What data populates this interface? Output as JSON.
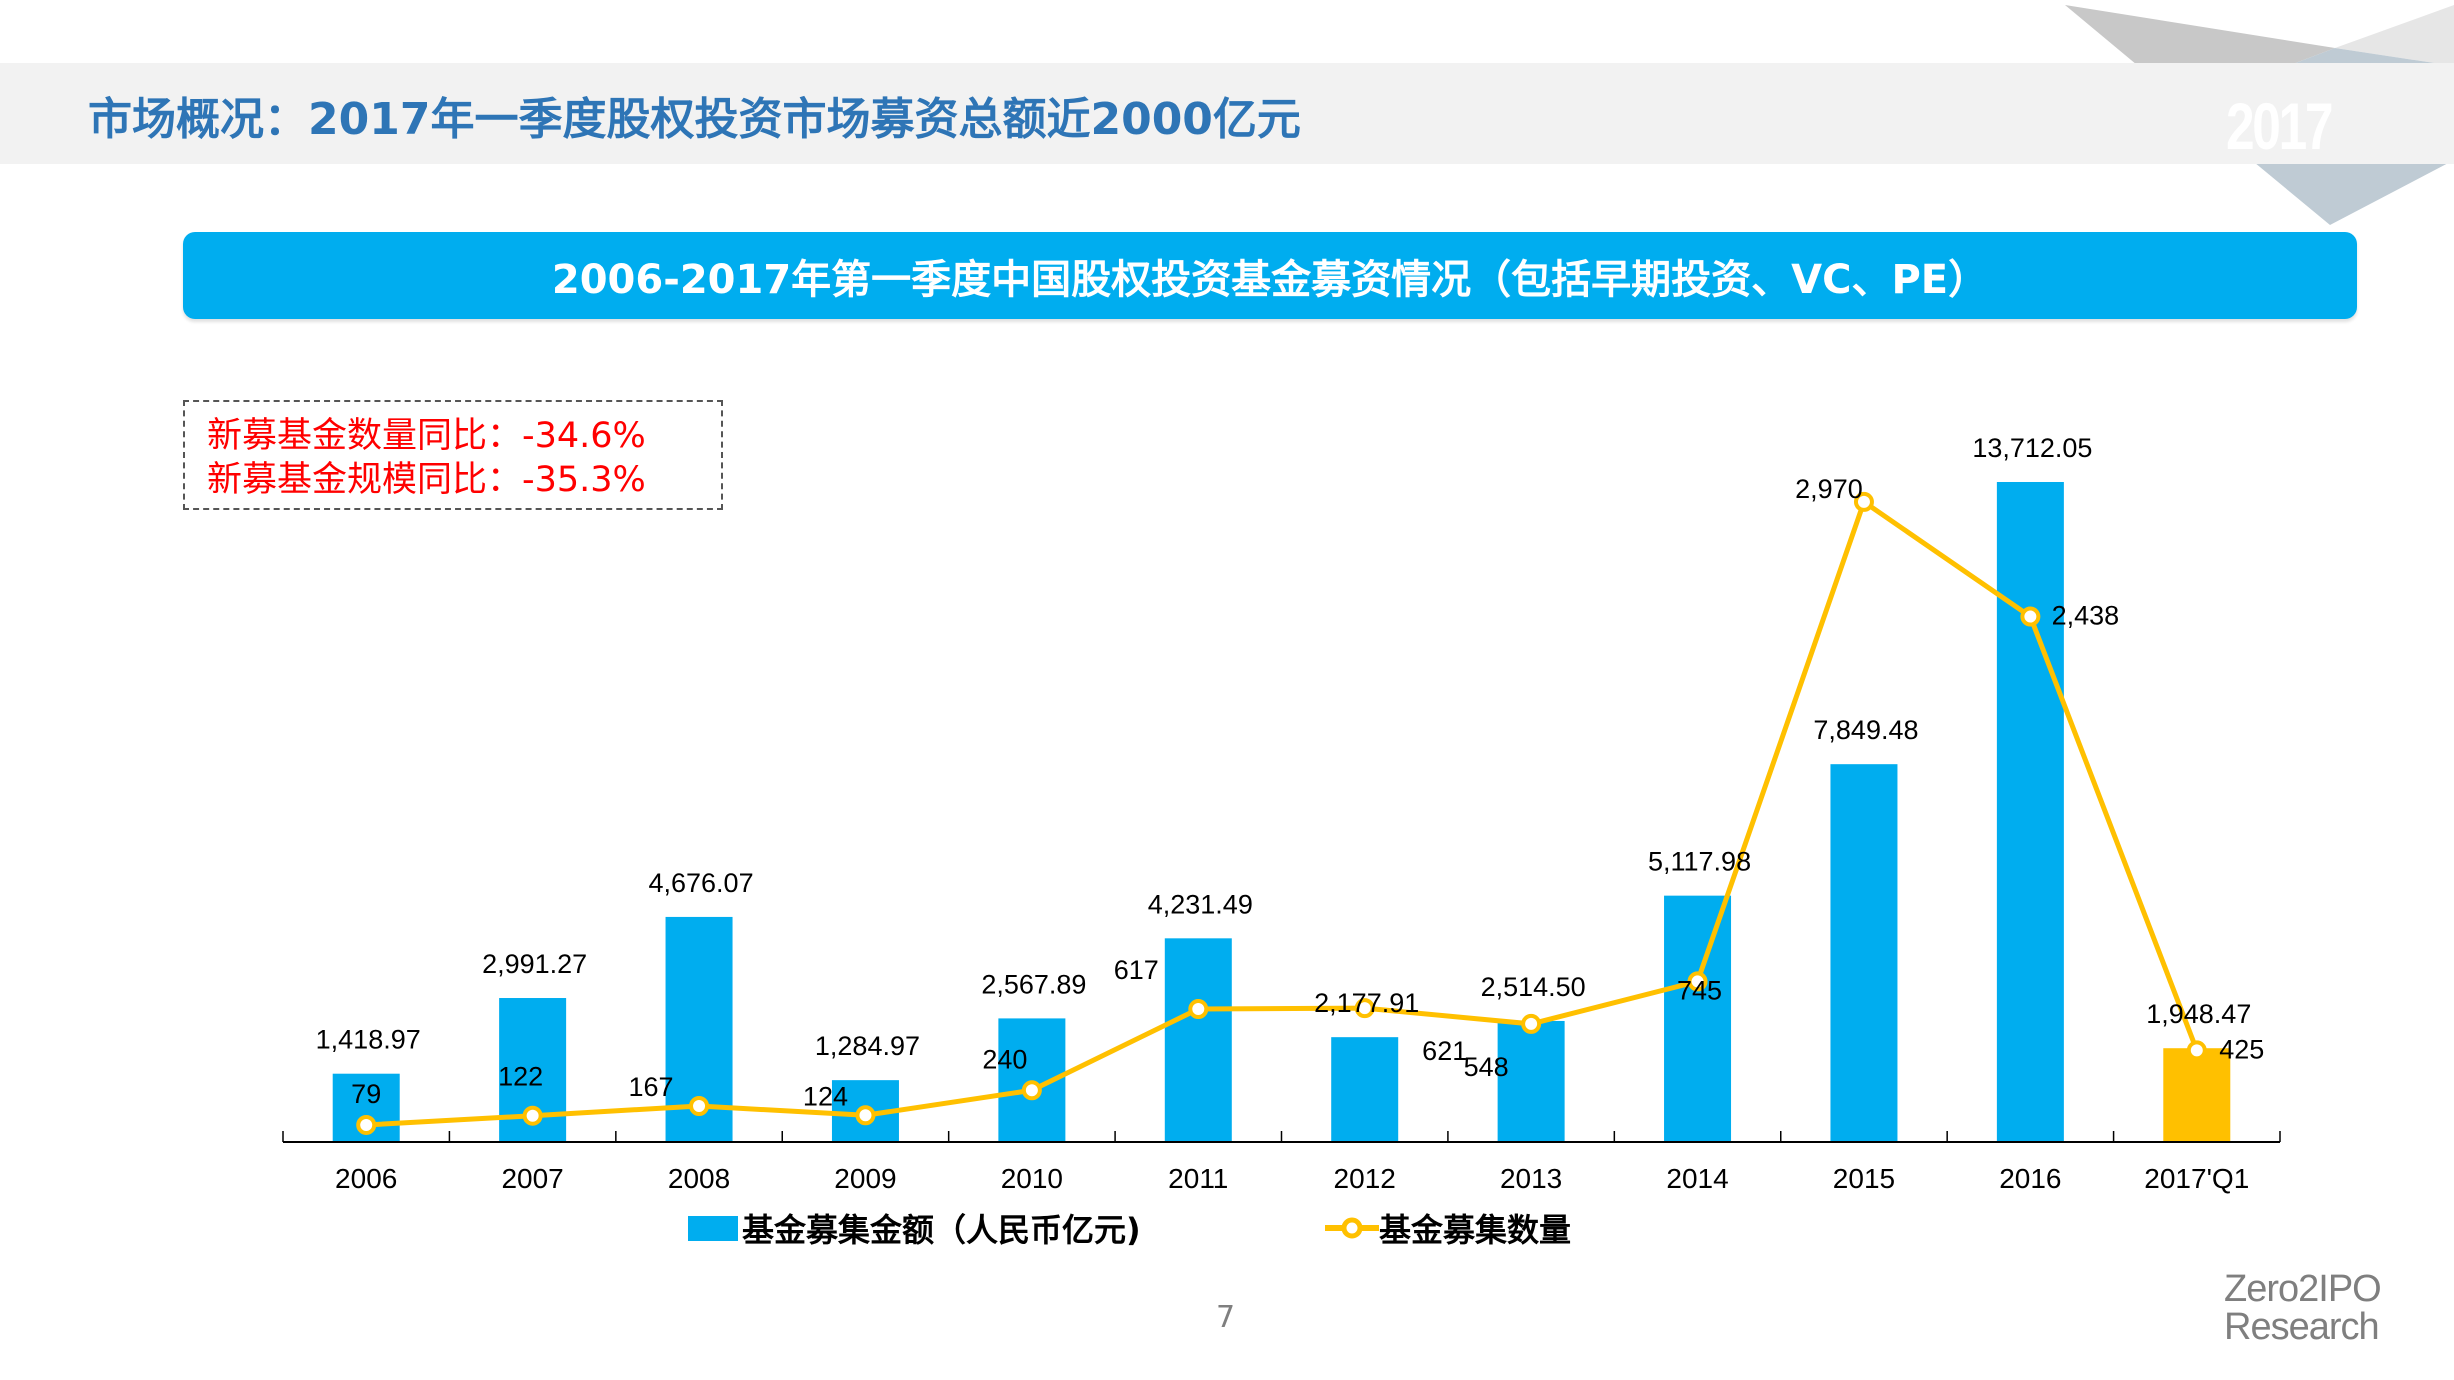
{
  "header": {
    "title": "市场概况：2017年一季度股权投资市场募资总额近2000亿元",
    "year_badge": "2017"
  },
  "banner": {
    "title": "2006-2017年第一季度中国股权投资基金募资情况（包括早期投资、VC、PE）"
  },
  "stats_box": {
    "lines": [
      "新募基金数量同比：-34.6%",
      "新募基金规模同比：-35.3%"
    ],
    "color": "#ff0000"
  },
  "chart_data": {
    "type": "bar",
    "title": "2006-2017年第一季度中国股权投资基金募资情况（包括早期投资、VC、PE）",
    "xlabel": "",
    "ylabel": "",
    "grid": false,
    "legend_position": "bottom",
    "categories": [
      "2006",
      "2007",
      "2008",
      "2009",
      "2010",
      "2011",
      "2012",
      "2013",
      "2014",
      "2015",
      "2016",
      "2017'Q1"
    ],
    "series": [
      {
        "name": "基金募集金额（人民币亿元)",
        "type": "bar",
        "axis": "primary",
        "color": "#00adef",
        "highlight_color": "#ffc000",
        "highlight_index": 11,
        "values": [
          1418.97,
          2991.27,
          4676.07,
          1284.97,
          2567.89,
          4231.49,
          2177.91,
          2514.5,
          5117.98,
          7849.48,
          13712.05,
          1948.47
        ],
        "labels": [
          "1,418.97",
          "2,991.27",
          "4,676.07",
          "1,284.97",
          "2,567.89",
          "4,231.49",
          "2,177.91",
          "2,514.50",
          "5,117.98",
          "7,849.48",
          "13,712.05",
          "1,948.47"
        ]
      },
      {
        "name": "基金募集数量",
        "type": "line",
        "axis": "secondary",
        "color": "#ffc000",
        "values": [
          79,
          122,
          167,
          124,
          240,
          617,
          621,
          548,
          745,
          2970,
          2438,
          425
        ],
        "labels": [
          "79",
          "122",
          "167",
          "124",
          "240",
          "617",
          "621",
          "548",
          "745",
          "2,970",
          "2,438",
          "425"
        ]
      }
    ],
    "ylim_primary": [
      0,
      22500
    ],
    "ylim_secondary": [
      0,
      3350
    ]
  },
  "legend": {
    "bar_label": "基金募集金额（人民币亿元)",
    "line_label": "基金募集数量"
  },
  "footer": {
    "page_number": "7",
    "brand_line1": "Zero2IPO",
    "brand_line2": "Research"
  }
}
